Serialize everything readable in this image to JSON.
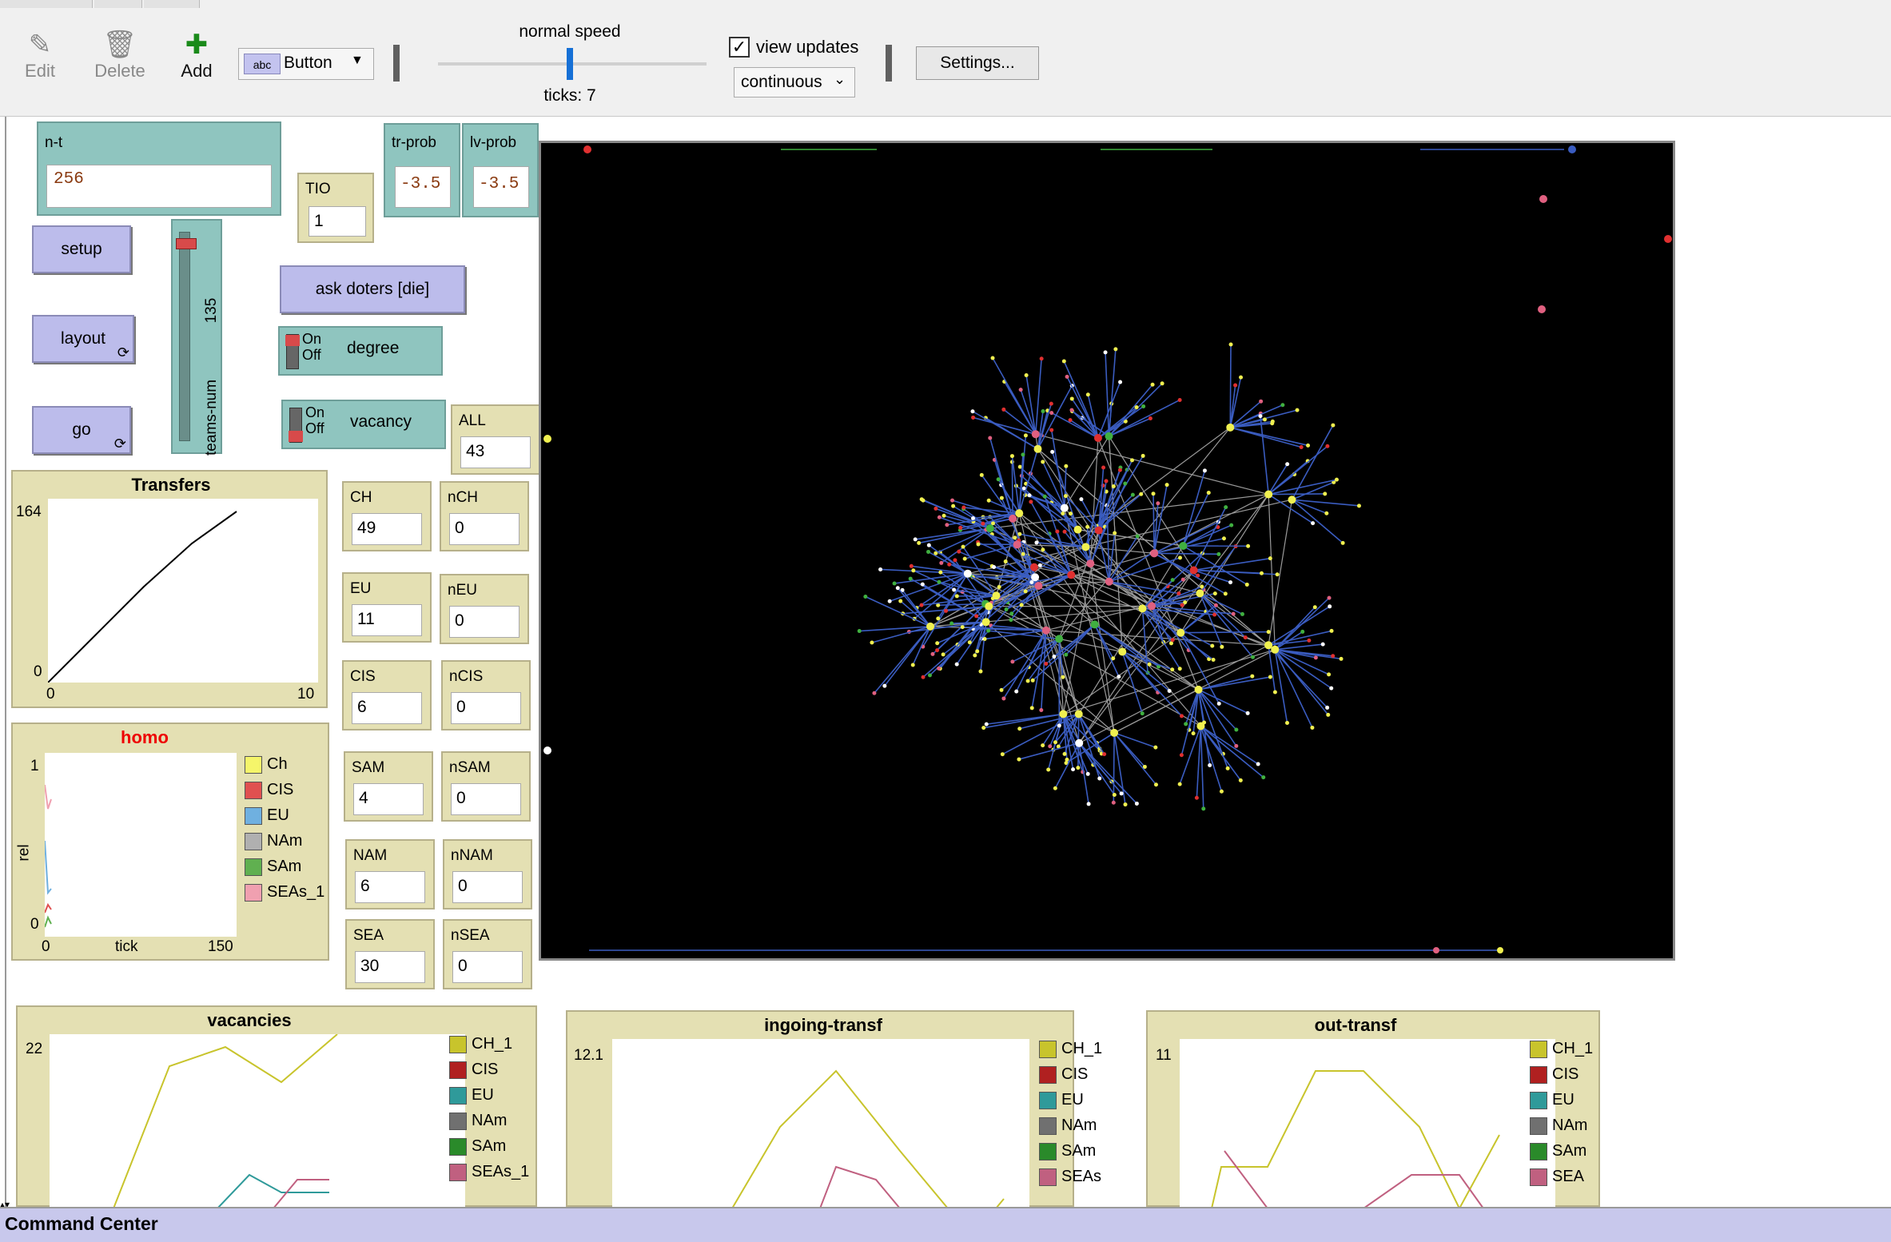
{
  "toolbar": {
    "edit_label": "Edit",
    "delete_label": "Delete",
    "add_label": "Add",
    "widget_type": "Button",
    "speed_label": "normal speed",
    "ticks_label": "ticks: 7",
    "view_updates_label": "view updates",
    "view_updates_checked": true,
    "update_mode": "continuous",
    "settings_label": "Settings...",
    "speed_fraction": 0.49
  },
  "inputs": {
    "n_t": {
      "label": "n-t",
      "value": "256"
    },
    "tio": {
      "label": "TIO",
      "value": "1"
    },
    "tr_prob": {
      "label": "tr-prob",
      "value": "-3.5"
    },
    "lv_prob": {
      "label": "lv-prob",
      "value": "-3.5"
    }
  },
  "buttons": {
    "setup": "setup",
    "layout": "layout",
    "go": "go",
    "ask_doters": "ask doters [die]"
  },
  "slider": {
    "label": "teams-num",
    "value": "135",
    "fraction": 0.97
  },
  "switches": {
    "degree": {
      "label": "degree",
      "on": "On",
      "off": "Off"
    },
    "vacancy": {
      "label": "vacancy",
      "on": "On",
      "off": "Off"
    }
  },
  "monitors": [
    {
      "label": "ALL",
      "value": "43"
    },
    {
      "label": "CH",
      "value": "49"
    },
    {
      "label": "nCH",
      "value": "0"
    },
    {
      "label": "EU",
      "value": "11"
    },
    {
      "label": "nEU",
      "value": "0"
    },
    {
      "label": "CIS",
      "value": "6"
    },
    {
      "label": "nCIS",
      "value": "0"
    },
    {
      "label": "SAM",
      "value": "4"
    },
    {
      "label": "nSAM",
      "value": "0"
    },
    {
      "label": "NAM",
      "value": "6"
    },
    {
      "label": "nNAM",
      "value": "0"
    },
    {
      "label": "SEA",
      "value": "30"
    },
    {
      "label": "nSEA",
      "value": "0"
    }
  ],
  "plots": {
    "transfers": {
      "title": "Transfers",
      "ymax": "164",
      "ymin": "0",
      "xmin": "0",
      "xmax": "10"
    },
    "homo": {
      "title": "homo",
      "ymax": "1",
      "ymin": "0",
      "xmin": "0",
      "xmax": "150",
      "xlabel": "tick",
      "ylabel": "rel",
      "legend": [
        {
          "name": "Ch",
          "color": "#f5f56a"
        },
        {
          "name": "CIS",
          "color": "#e05050"
        },
        {
          "name": "EU",
          "color": "#6fb0e0"
        },
        {
          "name": "NAm",
          "color": "#b0b0b0"
        },
        {
          "name": "SAm",
          "color": "#60b050"
        },
        {
          "name": "SEAs_1",
          "color": "#f0a0b0"
        }
      ]
    },
    "vacancies": {
      "title": "vacancies",
      "ymax": "22",
      "legend": [
        {
          "name": "CH_1",
          "color": "#c8c42c"
        },
        {
          "name": "CIS",
          "color": "#b02020"
        },
        {
          "name": "EU",
          "color": "#2f9a9a"
        },
        {
          "name": "NAm",
          "color": "#707070"
        },
        {
          "name": "SAm",
          "color": "#2a8a2a"
        },
        {
          "name": "SEAs_1",
          "color": "#c06080"
        }
      ]
    },
    "ingoing": {
      "title": "ingoing-transf",
      "ymax": "12.1",
      "legend": [
        {
          "name": "CH_1",
          "color": "#c8c42c"
        },
        {
          "name": "CIS",
          "color": "#b02020"
        },
        {
          "name": "EU",
          "color": "#2f9a9a"
        },
        {
          "name": "NAm",
          "color": "#707070"
        },
        {
          "name": "SAm",
          "color": "#2a8a2a"
        },
        {
          "name": "SEAs",
          "color": "#c06080"
        }
      ]
    },
    "outgoing": {
      "title": "out-transf",
      "ymax": "11",
      "legend": [
        {
          "name": "CH_1",
          "color": "#c8c42c"
        },
        {
          "name": "CIS",
          "color": "#b02020"
        },
        {
          "name": "EU",
          "color": "#2f9a9a"
        },
        {
          "name": "NAm",
          "color": "#707070"
        },
        {
          "name": "SAm",
          "color": "#2a8a2a"
        },
        {
          "name": "SEA",
          "color": "#c06080"
        }
      ]
    }
  },
  "command_center": {
    "label": "Command Center"
  }
}
